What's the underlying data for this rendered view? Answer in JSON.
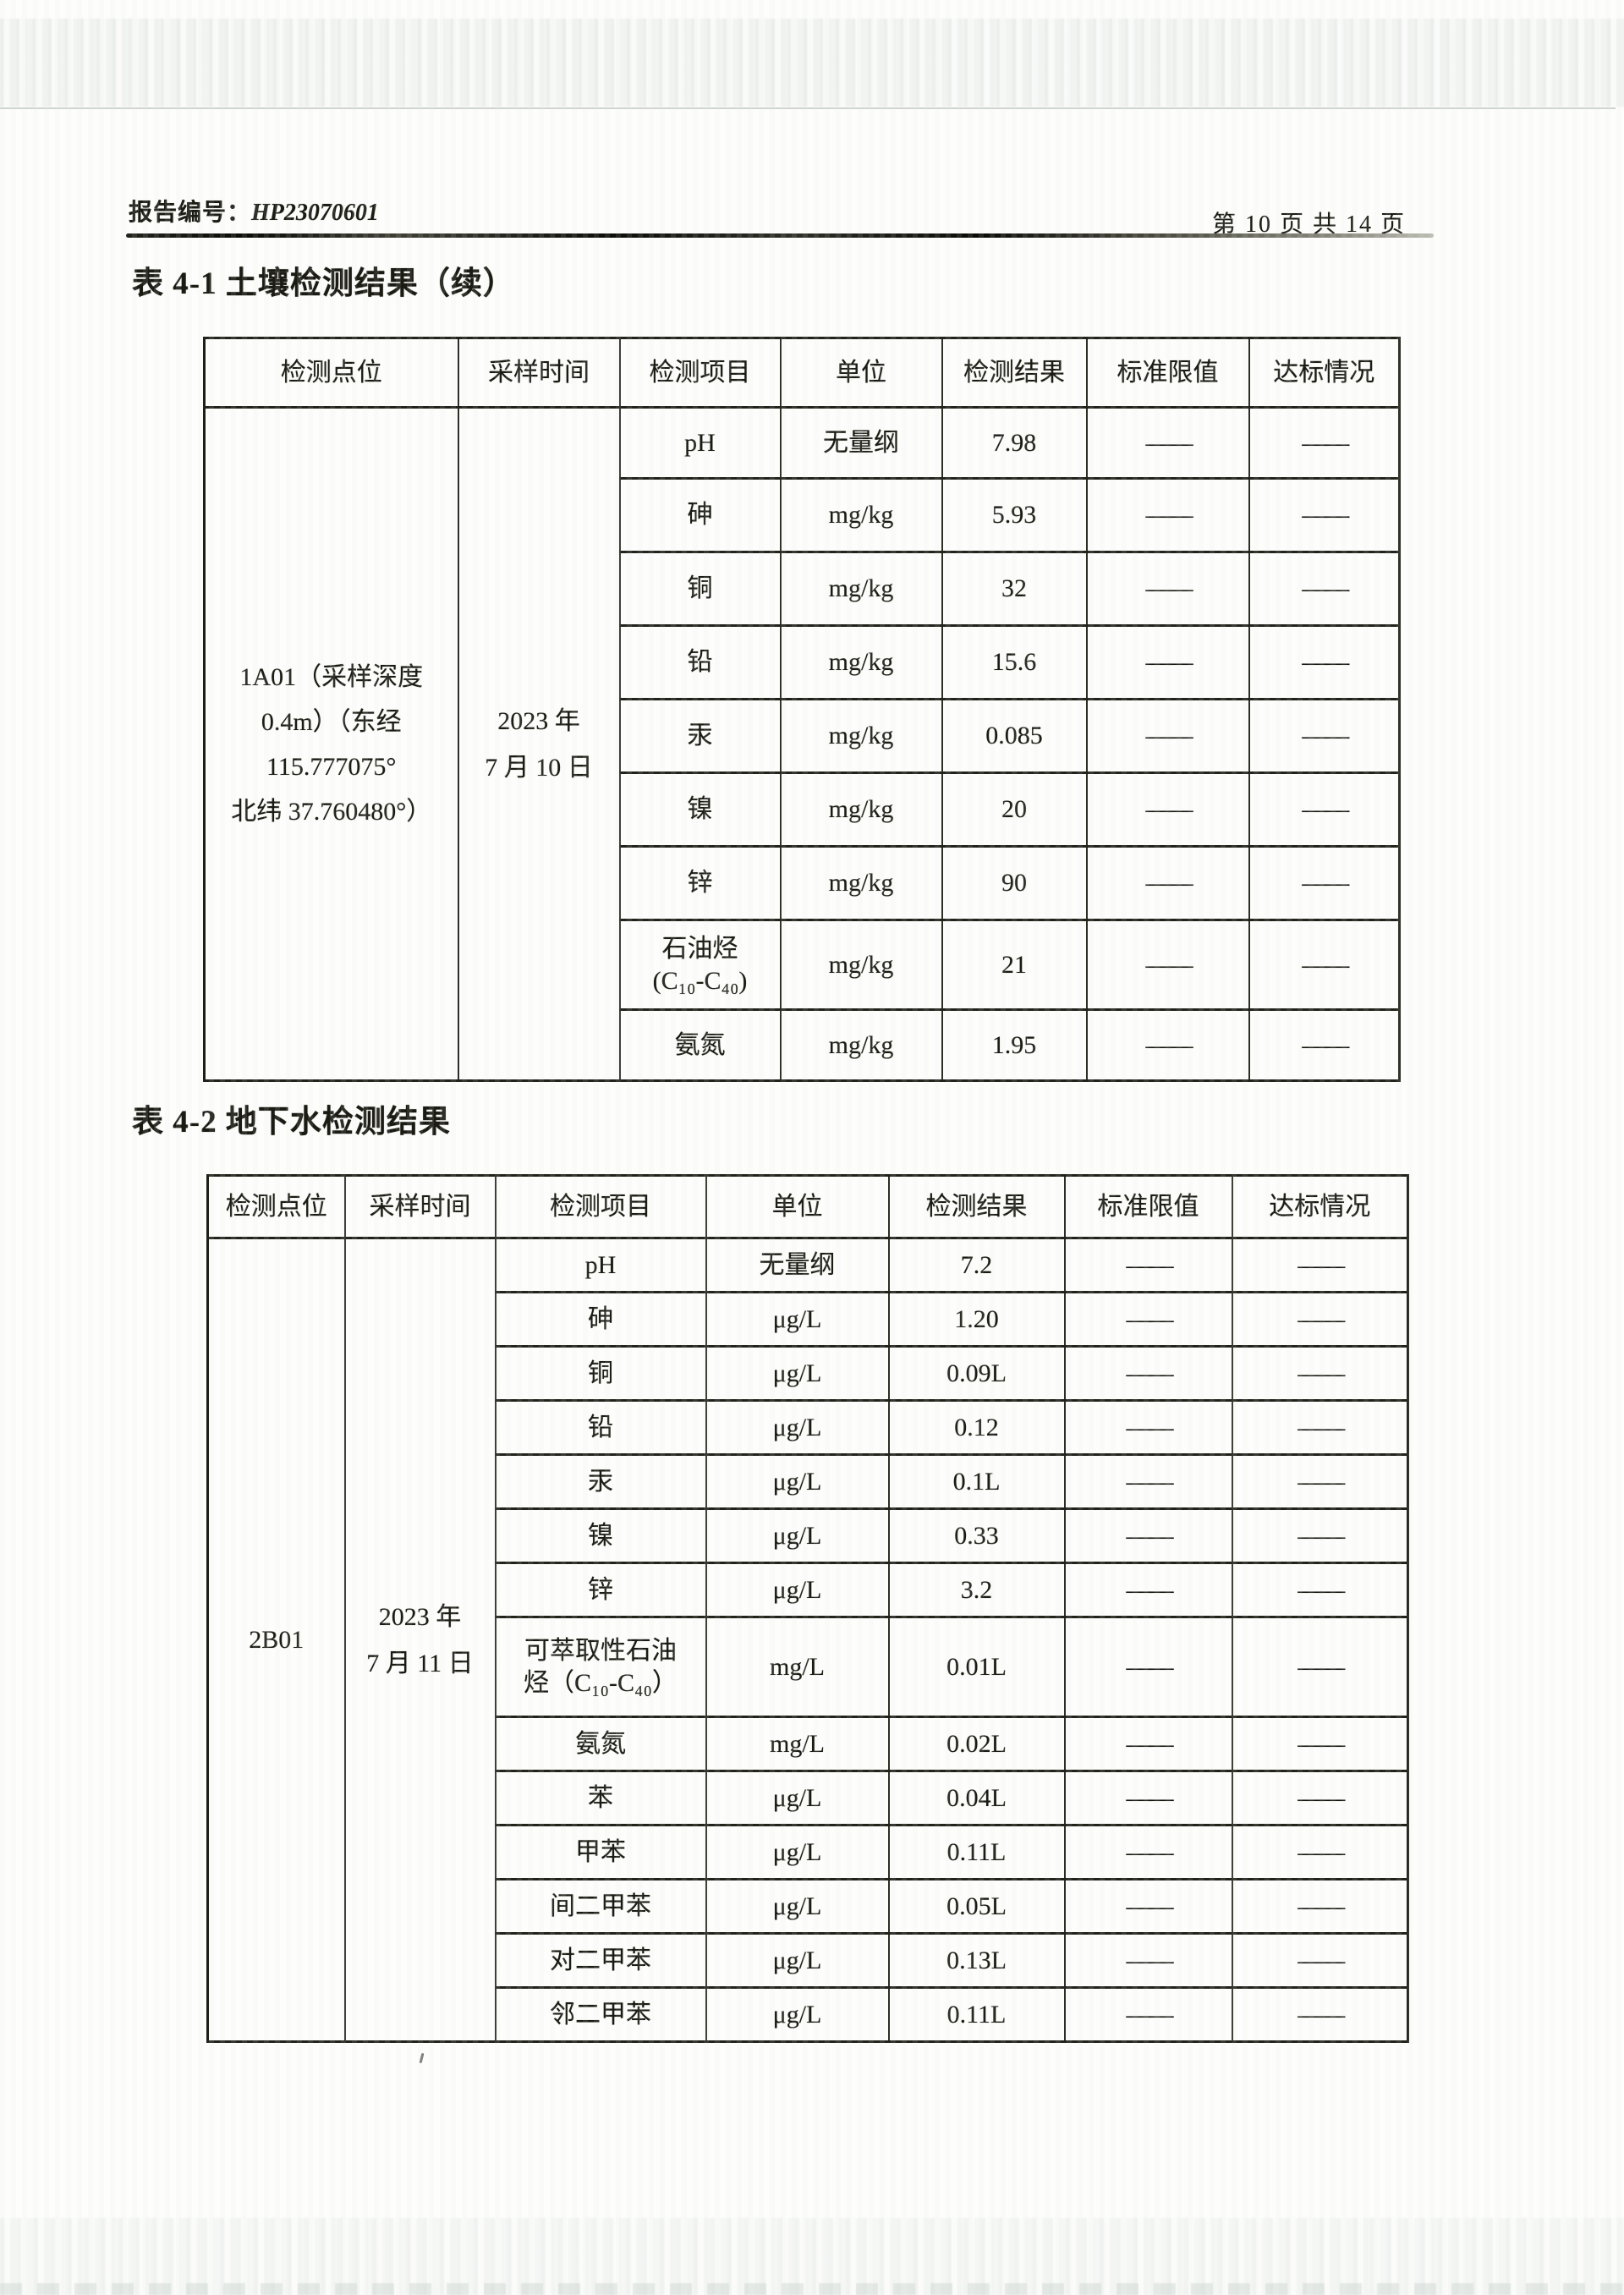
{
  "page": {
    "report_label": "报告编号：",
    "report_number": "HP23070601",
    "page_info": "第 10 页 共 14 页",
    "ink_color": "#1b1b14",
    "paper_color": "#fdfdfb"
  },
  "tables": [
    {
      "title": "表 4-1 土壤检测结果（续）",
      "columns": [
        "检测点位",
        "采样时间",
        "检测项目",
        "单位",
        "检测结果",
        "标准限值",
        "达标情况"
      ],
      "site": "1A01（采样深度\n0.4m）（东经\n115.777075°\n北纬 37.760480°）",
      "sample_time": "2023 年\n7 月 10 日",
      "rows": [
        {
          "item": "pH",
          "unit": "无量纲",
          "result": "7.98",
          "limit": "——",
          "status": "——"
        },
        {
          "item": "砷",
          "unit": "mg/kg",
          "result": "5.93",
          "limit": "——",
          "status": "——"
        },
        {
          "item": "铜",
          "unit": "mg/kg",
          "result": "32",
          "limit": "——",
          "status": "——"
        },
        {
          "item": "铅",
          "unit": "mg/kg",
          "result": "15.6",
          "limit": "——",
          "status": "——"
        },
        {
          "item": "汞",
          "unit": "mg/kg",
          "result": "0.085",
          "limit": "——",
          "status": "——"
        },
        {
          "item": "镍",
          "unit": "mg/kg",
          "result": "20",
          "limit": "——",
          "status": "——"
        },
        {
          "item": "锌",
          "unit": "mg/kg",
          "result": "90",
          "limit": "——",
          "status": "——"
        },
        {
          "item": "石油烃\n(C₁₀-C₄₀)",
          "unit": "mg/kg",
          "result": "21",
          "limit": "——",
          "status": "——"
        },
        {
          "item": "氨氮",
          "unit": "mg/kg",
          "result": "1.95",
          "limit": "——",
          "status": "——"
        }
      ]
    },
    {
      "title": "表 4-2 地下水检测结果",
      "columns": [
        "检测点位",
        "采样时间",
        "检测项目",
        "单位",
        "检测结果",
        "标准限值",
        "达标情况"
      ],
      "site": "2B01",
      "sample_time": "2023 年\n7 月 11 日",
      "rows": [
        {
          "item": "pH",
          "unit": "无量纲",
          "result": "7.2",
          "limit": "——",
          "status": "——"
        },
        {
          "item": "砷",
          "unit": "μg/L",
          "result": "1.20",
          "limit": "——",
          "status": "——"
        },
        {
          "item": "铜",
          "unit": "μg/L",
          "result": "0.09L",
          "limit": "——",
          "status": "——"
        },
        {
          "item": "铅",
          "unit": "μg/L",
          "result": "0.12",
          "limit": "——",
          "status": "——"
        },
        {
          "item": "汞",
          "unit": "μg/L",
          "result": "0.1L",
          "limit": "——",
          "status": "——"
        },
        {
          "item": "镍",
          "unit": "μg/L",
          "result": "0.33",
          "limit": "——",
          "status": "——"
        },
        {
          "item": "锌",
          "unit": "μg/L",
          "result": "3.2",
          "limit": "——",
          "status": "——"
        },
        {
          "item": "可萃取性石油\n烃（C₁₀-C₄₀）",
          "unit": "mg/L",
          "result": "0.01L",
          "limit": "——",
          "status": "——"
        },
        {
          "item": "氨氮",
          "unit": "mg/L",
          "result": "0.02L",
          "limit": "——",
          "status": "——"
        },
        {
          "item": "苯",
          "unit": "μg/L",
          "result": "0.04L",
          "limit": "——",
          "status": "——"
        },
        {
          "item": "甲苯",
          "unit": "μg/L",
          "result": "0.11L",
          "limit": "——",
          "status": "——"
        },
        {
          "item": "间二甲苯",
          "unit": "μg/L",
          "result": "0.05L",
          "limit": "——",
          "status": "——"
        },
        {
          "item": "对二甲苯",
          "unit": "μg/L",
          "result": "0.13L",
          "limit": "——",
          "status": "——"
        },
        {
          "item": "邻二甲苯",
          "unit": "μg/L",
          "result": "0.11L",
          "limit": "——",
          "status": "——"
        }
      ]
    }
  ]
}
